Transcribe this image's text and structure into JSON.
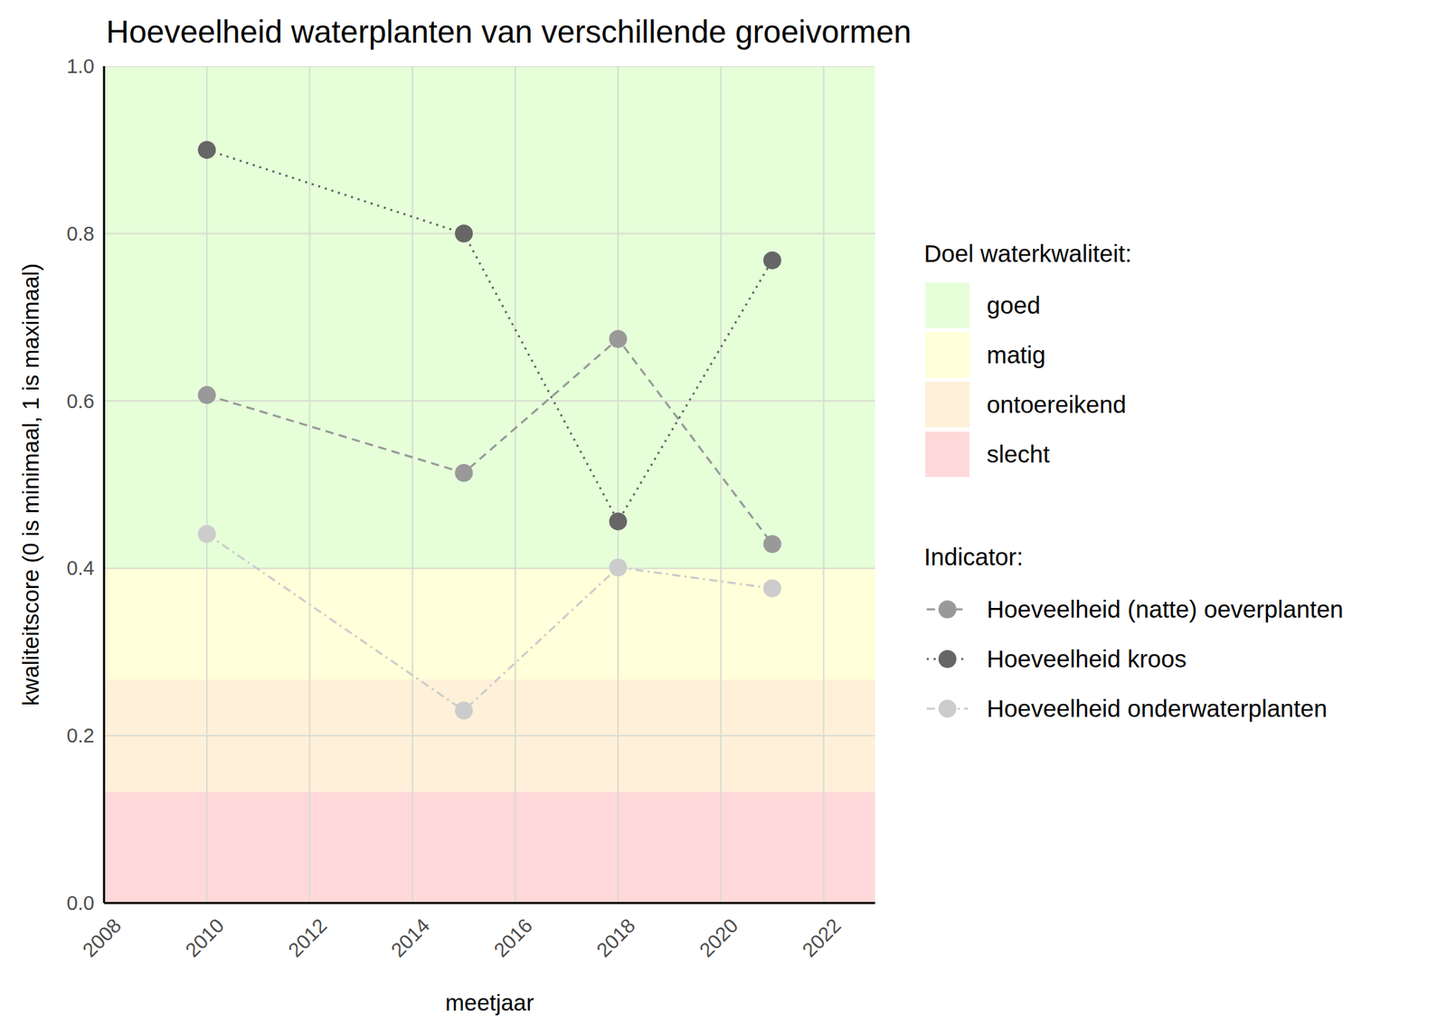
{
  "chart_data": {
    "type": "line",
    "title": "Hoeveelheid waterplanten van verschillende groeivormen",
    "x_label": "meetjaar",
    "y_label": "kwaliteitscore (0 is minimaal, 1 is maximaal)",
    "x": [
      2010,
      2015,
      2018,
      2021
    ],
    "xlim": [
      2008,
      2023
    ],
    "xticks": [
      2008,
      2010,
      2012,
      2014,
      2016,
      2018,
      2020,
      2022
    ],
    "ylim": [
      0,
      1
    ],
    "yticks": [
      {
        "value": 0,
        "label": "0.0"
      },
      0.2,
      0.4,
      0.6,
      0.8,
      {
        "value": 1,
        "label": "1.0"
      }
    ],
    "grid": true,
    "marker": "circle",
    "legend": "right",
    "bands_title": "Doel waterkwaliteit:",
    "bands": [
      {
        "name": "goed",
        "from": 0.4,
        "to": 1,
        "color": "#e6ffd9"
      },
      {
        "name": "matig",
        "from": 0.267,
        "to": 0.4,
        "color": "#ffffd9"
      },
      {
        "name": "ontoereikend",
        "from": 0.133,
        "to": 0.267,
        "color": "#fff0d9"
      },
      {
        "name": "slecht",
        "from": 0,
        "to": 0.133,
        "color": "#ffd9d9"
      }
    ],
    "legend_title": "Indicator:",
    "series": [
      {
        "name": "Hoeveelheid (natte) oeverplanten",
        "color": "#999999",
        "line_style": "dashed",
        "values": [
          0.607,
          0.514,
          0.674,
          0.429
        ]
      },
      {
        "name": "Hoeveelheid kroos",
        "color": "#666666",
        "line_style": "dotted",
        "values": [
          0.9,
          0.8,
          0.456,
          0.768
        ]
      },
      {
        "name": "Hoeveelheid onderwaterplanten",
        "color": "#cccccc",
        "line_style": "dotdash",
        "values": [
          0.441,
          0.23,
          0.401,
          0.376
        ]
      }
    ]
  }
}
